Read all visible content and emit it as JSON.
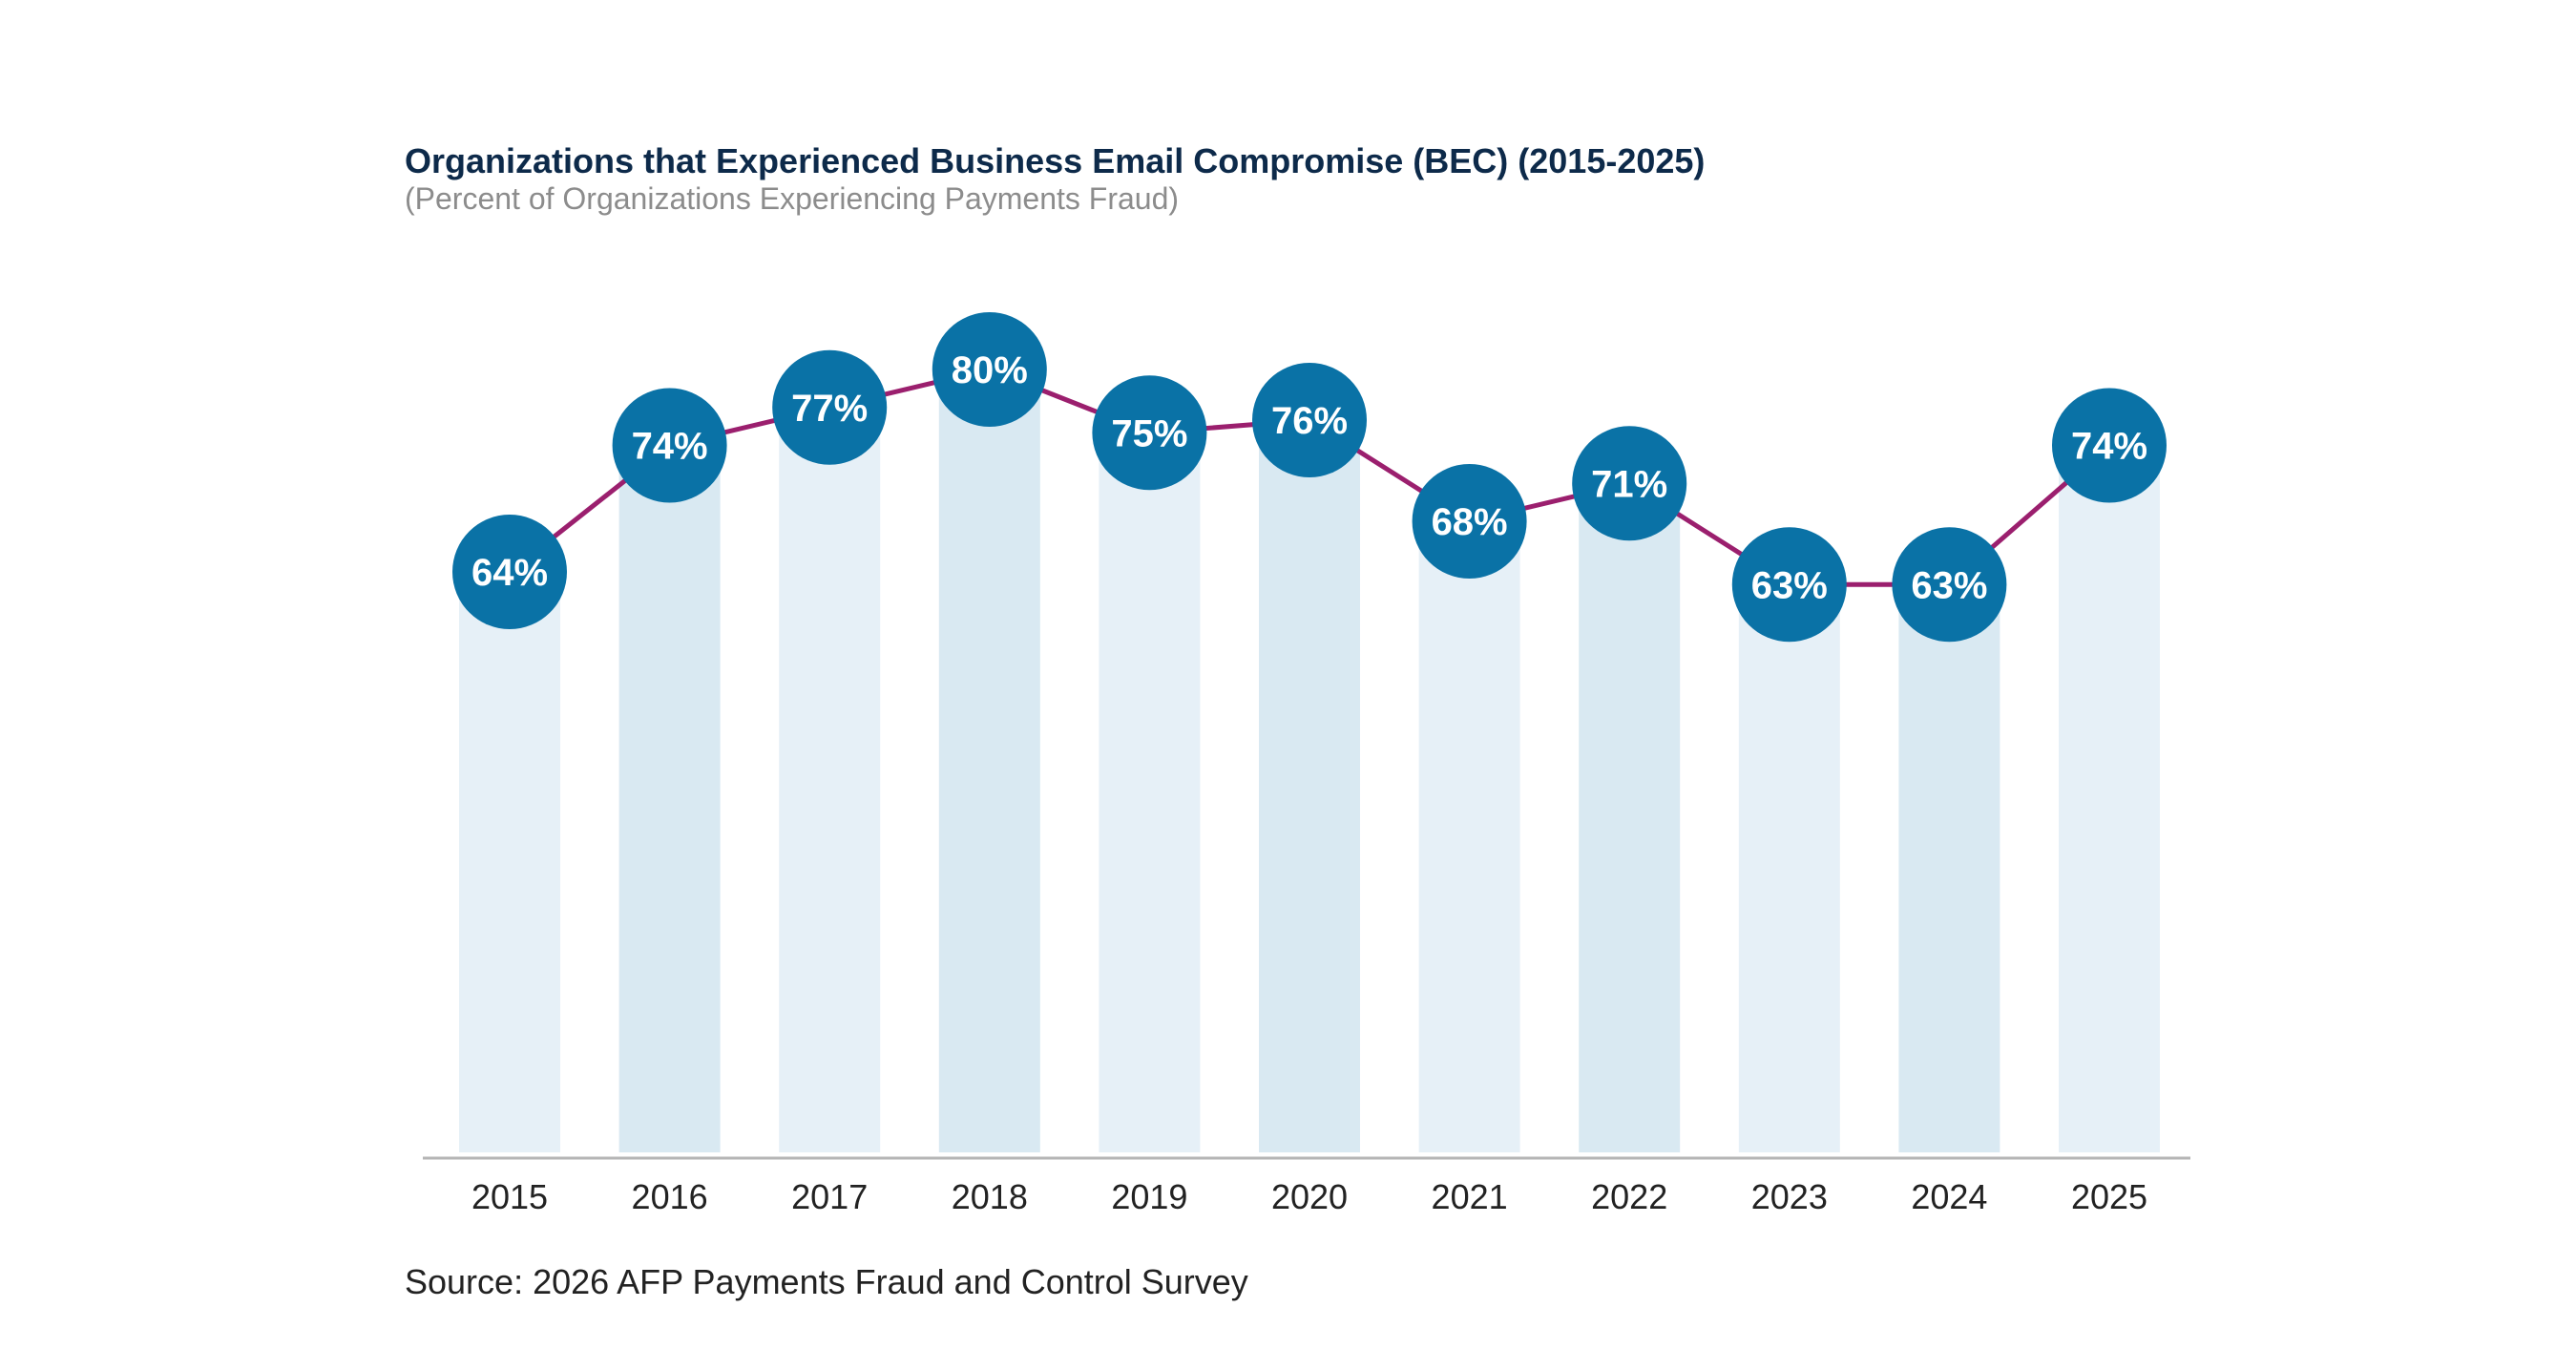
{
  "chart_data": {
    "type": "bar",
    "title": "Organizations that Experienced Business Email Compromise (BEC) (2015-2025)",
    "subtitle": "(Percent of Organizations Experiencing Payments Fraud)",
    "categories": [
      "2015",
      "2016",
      "2017",
      "2018",
      "2019",
      "2020",
      "2021",
      "2022",
      "2023",
      "2024",
      "2025"
    ],
    "values": [
      64,
      74,
      77,
      80,
      75,
      76,
      68,
      71,
      63,
      63,
      74
    ],
    "data_labels": [
      "64%",
      "74%",
      "77%",
      "80%",
      "75%",
      "76%",
      "68%",
      "71%",
      "63%",
      "63%",
      "74%"
    ],
    "overlay": "line",
    "ylim": [
      0,
      100
    ],
    "grid": false,
    "legend": "none",
    "colors": {
      "bar_light": "#e6f0f7",
      "bar_dark": "#d9e9f2",
      "line": "#9b1f6e",
      "marker": "#0a72a6",
      "marker_text": "#ffffff",
      "axis": "#b5b5b5"
    }
  },
  "source": "Source: 2026 AFP Payments Fraud and Control Survey"
}
